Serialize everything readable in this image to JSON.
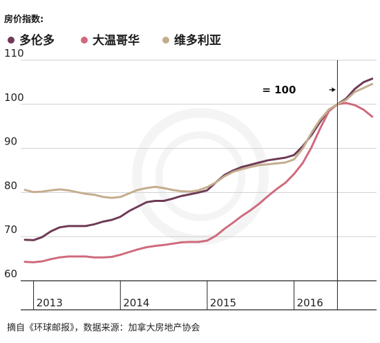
{
  "chart_data": {
    "type": "line",
    "title": "房价指数:",
    "xlabel": "",
    "ylabel": "",
    "ylim": [
      60,
      110
    ],
    "yticks": [
      60,
      70,
      80,
      90,
      100,
      110
    ],
    "xlim": [
      2012.9,
      2016.95
    ],
    "xticks": [
      {
        "value": 2013.0,
        "label": "2013"
      },
      {
        "value": 2014.0,
        "label": "2014"
      },
      {
        "value": 2015.0,
        "label": "2015"
      },
      {
        "value": 2016.0,
        "label": "2016"
      }
    ],
    "grid": true,
    "legend": "top-left",
    "annotation": {
      "label": "= 100",
      "x": 2016.5,
      "y": 100
    },
    "source": "摘自《环球邮报》，数据来源：加拿大房地产协会",
    "series": [
      {
        "name": "多伦多",
        "color": "#6e3a55",
        "points": [
          [
            2012.9,
            69.3
          ],
          [
            2013.0,
            69.2
          ],
          [
            2013.1,
            69.9
          ],
          [
            2013.2,
            71.2
          ],
          [
            2013.3,
            72.1
          ],
          [
            2013.4,
            72.4
          ],
          [
            2013.5,
            72.4
          ],
          [
            2013.6,
            72.4
          ],
          [
            2013.7,
            72.8
          ],
          [
            2013.8,
            73.4
          ],
          [
            2013.9,
            73.8
          ],
          [
            2014.0,
            74.5
          ],
          [
            2014.1,
            75.8
          ],
          [
            2014.2,
            76.8
          ],
          [
            2014.3,
            77.8
          ],
          [
            2014.4,
            78.1
          ],
          [
            2014.5,
            78.1
          ],
          [
            2014.6,
            78.6
          ],
          [
            2014.7,
            79.2
          ],
          [
            2014.8,
            79.6
          ],
          [
            2014.9,
            80.0
          ],
          [
            2015.0,
            80.5
          ],
          [
            2015.1,
            82.3
          ],
          [
            2015.2,
            84.0
          ],
          [
            2015.3,
            85.0
          ],
          [
            2015.4,
            85.8
          ],
          [
            2015.5,
            86.3
          ],
          [
            2015.6,
            86.8
          ],
          [
            2015.7,
            87.3
          ],
          [
            2015.8,
            87.6
          ],
          [
            2015.9,
            87.9
          ],
          [
            2016.0,
            88.5
          ],
          [
            2016.1,
            90.5
          ],
          [
            2016.2,
            93.0
          ],
          [
            2016.3,
            96.0
          ],
          [
            2016.4,
            98.8
          ],
          [
            2016.5,
            100.0
          ],
          [
            2016.6,
            101.3
          ],
          [
            2016.7,
            103.5
          ],
          [
            2016.8,
            105.0
          ],
          [
            2016.9,
            105.8
          ]
        ]
      },
      {
        "name": "大温哥华",
        "color": "#cf6a7c",
        "points": [
          [
            2012.9,
            64.3
          ],
          [
            2013.0,
            64.2
          ],
          [
            2013.1,
            64.4
          ],
          [
            2013.2,
            64.9
          ],
          [
            2013.3,
            65.3
          ],
          [
            2013.4,
            65.5
          ],
          [
            2013.5,
            65.5
          ],
          [
            2013.6,
            65.5
          ],
          [
            2013.7,
            65.3
          ],
          [
            2013.8,
            65.3
          ],
          [
            2013.9,
            65.4
          ],
          [
            2014.0,
            65.9
          ],
          [
            2014.1,
            66.5
          ],
          [
            2014.2,
            67.1
          ],
          [
            2014.3,
            67.6
          ],
          [
            2014.4,
            67.9
          ],
          [
            2014.5,
            68.1
          ],
          [
            2014.6,
            68.4
          ],
          [
            2014.7,
            68.7
          ],
          [
            2014.8,
            68.8
          ],
          [
            2014.9,
            68.8
          ],
          [
            2015.0,
            69.1
          ],
          [
            2015.1,
            70.2
          ],
          [
            2015.2,
            71.8
          ],
          [
            2015.3,
            73.2
          ],
          [
            2015.4,
            74.7
          ],
          [
            2015.5,
            76.0
          ],
          [
            2015.6,
            77.5
          ],
          [
            2015.7,
            79.2
          ],
          [
            2015.8,
            80.8
          ],
          [
            2015.9,
            82.2
          ],
          [
            2016.0,
            84.2
          ],
          [
            2016.1,
            86.7
          ],
          [
            2016.2,
            90.2
          ],
          [
            2016.3,
            94.5
          ],
          [
            2016.4,
            98.4
          ],
          [
            2016.5,
            100.0
          ],
          [
            2016.6,
            100.3
          ],
          [
            2016.7,
            99.8
          ],
          [
            2016.8,
            98.8
          ],
          [
            2016.9,
            97.2
          ]
        ]
      },
      {
        "name": "维多利亚",
        "color": "#c4ad8e",
        "points": [
          [
            2012.9,
            80.6
          ],
          [
            2013.0,
            80.1
          ],
          [
            2013.1,
            80.2
          ],
          [
            2013.2,
            80.5
          ],
          [
            2013.3,
            80.7
          ],
          [
            2013.4,
            80.5
          ],
          [
            2013.5,
            80.1
          ],
          [
            2013.6,
            79.7
          ],
          [
            2013.7,
            79.5
          ],
          [
            2013.8,
            79.0
          ],
          [
            2013.9,
            78.8
          ],
          [
            2014.0,
            79.0
          ],
          [
            2014.1,
            79.8
          ],
          [
            2014.2,
            80.6
          ],
          [
            2014.3,
            81.0
          ],
          [
            2014.4,
            81.3
          ],
          [
            2014.5,
            81.0
          ],
          [
            2014.6,
            80.6
          ],
          [
            2014.7,
            80.3
          ],
          [
            2014.8,
            80.2
          ],
          [
            2014.9,
            80.5
          ],
          [
            2015.0,
            81.2
          ],
          [
            2015.1,
            82.3
          ],
          [
            2015.2,
            83.7
          ],
          [
            2015.3,
            84.7
          ],
          [
            2015.4,
            85.3
          ],
          [
            2015.5,
            85.8
          ],
          [
            2015.6,
            86.2
          ],
          [
            2015.7,
            86.4
          ],
          [
            2015.8,
            86.6
          ],
          [
            2015.9,
            86.8
          ],
          [
            2016.0,
            87.5
          ],
          [
            2016.1,
            90.0
          ],
          [
            2016.2,
            93.5
          ],
          [
            2016.3,
            96.5
          ],
          [
            2016.4,
            98.8
          ],
          [
            2016.5,
            100.0
          ],
          [
            2016.6,
            101.0
          ],
          [
            2016.7,
            102.8
          ],
          [
            2016.8,
            103.7
          ],
          [
            2016.9,
            104.6
          ]
        ]
      }
    ]
  }
}
